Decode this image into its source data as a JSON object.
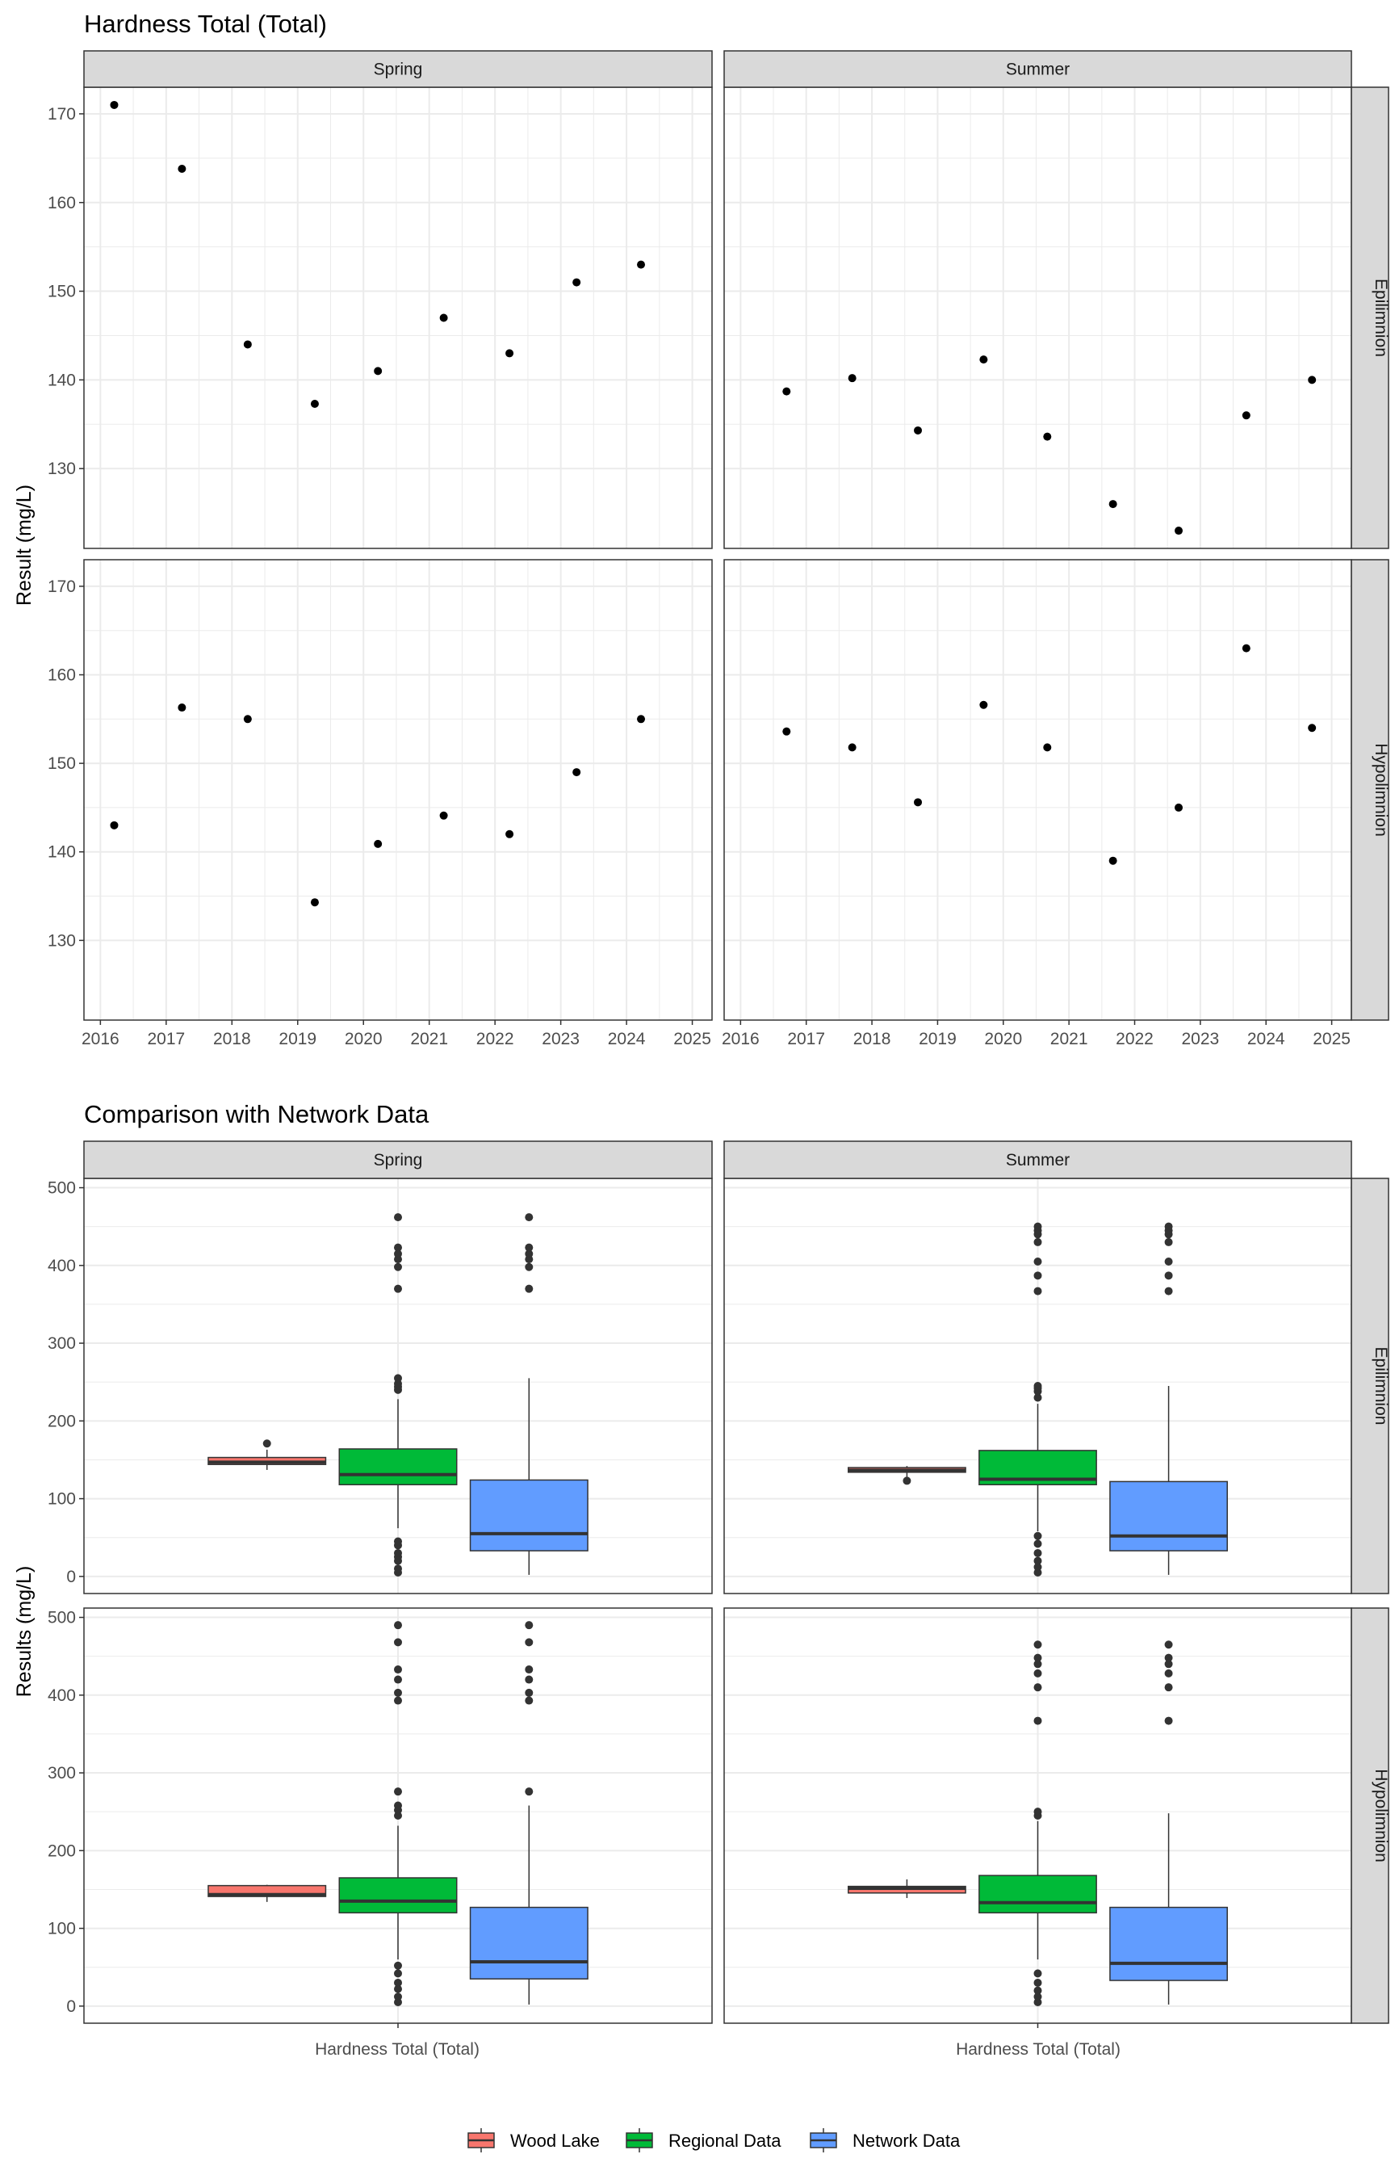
{
  "colors": {
    "wood_lake": "#F8766D",
    "regional_data": "#00BA38",
    "network_data": "#619CFF",
    "strip_fill": "#D9D9D9",
    "grid": "#EBEBEB",
    "panel_border": "#333333",
    "point": "#000000",
    "outlier": "#333333"
  },
  "chart_data": [
    {
      "type": "scatter",
      "title": "Hardness Total (Total)",
      "ylabel": "Result (mg/L)",
      "xlabel": "",
      "x_ticks": [
        "2016",
        "2017",
        "2018",
        "2019",
        "2020",
        "2021",
        "2022",
        "2023",
        "2024",
        "2025"
      ],
      "y_ticks": [
        "130",
        "140",
        "150",
        "160",
        "170"
      ],
      "xlim": [
        2015.75,
        2025.3
      ],
      "ylim": [
        121,
        173
      ],
      "grid": true,
      "facet_columns": [
        "Spring",
        "Summer"
      ],
      "facet_rows": [
        "Epilimnion",
        "Hypolimnion"
      ],
      "panels": [
        {
          "column": "Spring",
          "row": "Epilimnion",
          "points": [
            [
              2016.21,
              171
            ],
            [
              2017.24,
              163.8
            ],
            [
              2018.24,
              144
            ],
            [
              2019.26,
              137.3
            ],
            [
              2020.22,
              141
            ],
            [
              2021.22,
              147
            ],
            [
              2022.22,
              143
            ],
            [
              2023.24,
              151
            ],
            [
              2024.22,
              153
            ]
          ]
        },
        {
          "column": "Summer",
          "row": "Epilimnion",
          "points": [
            [
              2016.7,
              138.7
            ],
            [
              2017.7,
              140.2
            ],
            [
              2018.7,
              134.3
            ],
            [
              2019.7,
              142.3
            ],
            [
              2020.67,
              133.6
            ],
            [
              2021.67,
              126
            ],
            [
              2022.67,
              123
            ],
            [
              2023.7,
              136
            ],
            [
              2024.7,
              140
            ]
          ]
        },
        {
          "column": "Spring",
          "row": "Hypolimnion",
          "points": [
            [
              2016.21,
              143
            ],
            [
              2017.24,
              156.3
            ],
            [
              2018.24,
              155
            ],
            [
              2019.26,
              134.3
            ],
            [
              2020.22,
              140.9
            ],
            [
              2021.22,
              144.1
            ],
            [
              2022.22,
              142
            ],
            [
              2023.24,
              149
            ],
            [
              2024.22,
              155
            ]
          ]
        },
        {
          "column": "Summer",
          "row": "Hypolimnion",
          "points": [
            [
              2016.7,
              153.6
            ],
            [
              2017.7,
              151.8
            ],
            [
              2018.7,
              145.6
            ],
            [
              2019.7,
              156.6
            ],
            [
              2020.67,
              151.8
            ],
            [
              2021.67,
              139
            ],
            [
              2022.67,
              145
            ],
            [
              2023.7,
              163
            ],
            [
              2024.7,
              154
            ]
          ]
        }
      ]
    },
    {
      "type": "box",
      "title": "Comparison with Network Data",
      "ylabel": "Results (mg/L)",
      "xlabel": "Hardness Total (Total)",
      "y_ticks": [
        "0",
        "100",
        "200",
        "300",
        "400",
        "500"
      ],
      "ylim": [
        -22,
        512
      ],
      "grid": true,
      "legend_position": "bottom",
      "facet_columns": [
        "Spring",
        "Summer"
      ],
      "facet_rows": [
        "Epilimnion",
        "Hypolimnion"
      ],
      "groups": [
        "Wood Lake",
        "Regional Data",
        "Network Data"
      ],
      "panels": [
        {
          "column": "Spring",
          "row": "Epilimnion",
          "boxes": [
            {
              "group": "Wood Lake",
              "whisker_low": 137,
              "q1": 144,
              "median": 147,
              "q3": 153,
              "whisker_high": 163,
              "outliers": [
                171
              ]
            },
            {
              "group": "Regional Data",
              "whisker_low": 62,
              "q1": 118,
              "median": 131,
              "q3": 164,
              "whisker_high": 228,
              "outliers": [
                5,
                10,
                20,
                25,
                30,
                40,
                45,
                240,
                244,
                248,
                255,
                370,
                398,
                408,
                415,
                423,
                462
              ]
            },
            {
              "group": "Network Data",
              "whisker_low": 2,
              "q1": 33,
              "median": 55,
              "q3": 124,
              "whisker_high": 255,
              "outliers": [
                370,
                398,
                408,
                415,
                423,
                462
              ]
            }
          ]
        },
        {
          "column": "Summer",
          "row": "Epilimnion",
          "boxes": [
            {
              "group": "Wood Lake",
              "whisker_low": 126,
              "q1": 134,
              "median": 136.5,
              "q3": 140,
              "whisker_high": 142,
              "outliers": [
                123
              ]
            },
            {
              "group": "Regional Data",
              "whisker_low": 58,
              "q1": 118,
              "median": 125,
              "q3": 162,
              "whisker_high": 222,
              "outliers": [
                5,
                12,
                20,
                30,
                42,
                52,
                230,
                238,
                242,
                245,
                367,
                387,
                405,
                430,
                440,
                445,
                450
              ]
            },
            {
              "group": "Network Data",
              "whisker_low": 2,
              "q1": 33,
              "median": 52,
              "q3": 122,
              "whisker_high": 245,
              "outliers": [
                367,
                387,
                405,
                430,
                440,
                445,
                450
              ]
            }
          ]
        },
        {
          "column": "Spring",
          "row": "Hypolimnion",
          "boxes": [
            {
              "group": "Wood Lake",
              "whisker_low": 134,
              "q1": 141,
              "median": 143.5,
              "q3": 155,
              "whisker_high": 156,
              "outliers": []
            },
            {
              "group": "Regional Data",
              "whisker_low": 60,
              "q1": 120,
              "median": 135,
              "q3": 165,
              "whisker_high": 232,
              "outliers": [
                5,
                12,
                22,
                30,
                42,
                52,
                245,
                252,
                258,
                276,
                393,
                403,
                420,
                433,
                468,
                490
              ]
            },
            {
              "group": "Network Data",
              "whisker_low": 2,
              "q1": 35,
              "median": 57,
              "q3": 127,
              "whisker_high": 258,
              "outliers": [
                276,
                393,
                403,
                420,
                433,
                468,
                490
              ]
            }
          ]
        },
        {
          "column": "Summer",
          "row": "Hypolimnion",
          "boxes": [
            {
              "group": "Wood Lake",
              "whisker_low": 139,
              "q1": 145.5,
              "median": 151.5,
              "q3": 154,
              "whisker_high": 163,
              "outliers": []
            },
            {
              "group": "Regional Data",
              "whisker_low": 60,
              "q1": 120,
              "median": 133,
              "q3": 168,
              "whisker_high": 238,
              "outliers": [
                5,
                12,
                20,
                30,
                42,
                245,
                250,
                367,
                410,
                428,
                440,
                448,
                465
              ]
            },
            {
              "group": "Network Data",
              "whisker_low": 2,
              "q1": 33,
              "median": 55,
              "q3": 127,
              "whisker_high": 248,
              "outliers": [
                367,
                410,
                428,
                440,
                448,
                465
              ]
            }
          ]
        }
      ]
    }
  ]
}
